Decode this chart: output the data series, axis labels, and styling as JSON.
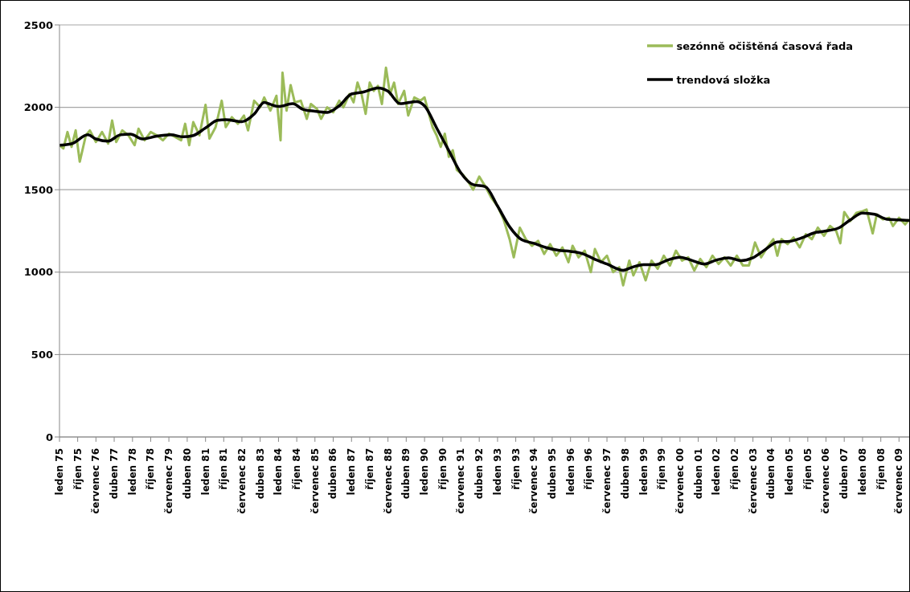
{
  "chart_data": {
    "type": "line",
    "legend": "top right",
    "grid": "y",
    "ylim": [
      0,
      2500
    ],
    "yticks": [
      0,
      500,
      1000,
      1500,
      2000,
      2500
    ],
    "xlim": [
      "1975-01",
      "2009-12"
    ],
    "xticks": [
      {
        "value": "1975-01",
        "label": "leden 75"
      },
      {
        "value": "1975-10",
        "label": "říjen 75"
      },
      {
        "value": "1976-07",
        "label": "červenec 76"
      },
      {
        "value": "1977-04",
        "label": "duben 77"
      },
      {
        "value": "1978-01",
        "label": "leden 78"
      },
      {
        "value": "1978-10",
        "label": "říjen 78"
      },
      {
        "value": "1979-07",
        "label": "červenec 79"
      },
      {
        "value": "1980-04",
        "label": "duben 80"
      },
      {
        "value": "1981-01",
        "label": "leden 81"
      },
      {
        "value": "1981-10",
        "label": "říjen 81"
      },
      {
        "value": "1982-07",
        "label": "červenec 82"
      },
      {
        "value": "1983-04",
        "label": "duben 83"
      },
      {
        "value": "1984-01",
        "label": "leden 84"
      },
      {
        "value": "1984-10",
        "label": "říjen 84"
      },
      {
        "value": "1985-07",
        "label": "červenec 85"
      },
      {
        "value": "1986-04",
        "label": "duben 86"
      },
      {
        "value": "1987-01",
        "label": "leden 87"
      },
      {
        "value": "1987-10",
        "label": "říjen 87"
      },
      {
        "value": "1988-07",
        "label": "červenec 88"
      },
      {
        "value": "1989-04",
        "label": "duben 89"
      },
      {
        "value": "1990-01",
        "label": "leden 90"
      },
      {
        "value": "1990-10",
        "label": "říjen 90"
      },
      {
        "value": "1991-07",
        "label": "červenec 91"
      },
      {
        "value": "1992-04",
        "label": "duben 92"
      },
      {
        "value": "1993-01",
        "label": "leden 93"
      },
      {
        "value": "1993-10",
        "label": "říjen 93"
      },
      {
        "value": "1994-07",
        "label": "červenec 94"
      },
      {
        "value": "1995-04",
        "label": "duben 95"
      },
      {
        "value": "1996-01",
        "label": "leden 96"
      },
      {
        "value": "1996-10",
        "label": "říjen 96"
      },
      {
        "value": "1997-07",
        "label": "červenec 97"
      },
      {
        "value": "1998-04",
        "label": "duben 98"
      },
      {
        "value": "1999-01",
        "label": "leden 99"
      },
      {
        "value": "1999-10",
        "label": "říjen 99"
      },
      {
        "value": "2000-07",
        "label": "červenec 00"
      },
      {
        "value": "2001-04",
        "label": "duben 01"
      },
      {
        "value": "2002-01",
        "label": "leden 02"
      },
      {
        "value": "2002-10",
        "label": "říjen 02"
      },
      {
        "value": "2003-07",
        "label": "červenec 03"
      },
      {
        "value": "2004-04",
        "label": "duben 04"
      },
      {
        "value": "2005-01",
        "label": "leden 05"
      },
      {
        "value": "2005-10",
        "label": "říjen 05"
      },
      {
        "value": "2006-07",
        "label": "červenec 06"
      },
      {
        "value": "2007-04",
        "label": "duben 07"
      },
      {
        "value": "2008-01",
        "label": "leden 08"
      },
      {
        "value": "2008-10",
        "label": "říjen 08"
      },
      {
        "value": "2009-07",
        "label": "červenec 09"
      }
    ],
    "series": [
      {
        "name": "sezónně očištěná časová řada",
        "color": "#9bbb59",
        "x": [
          "1975-01",
          "1975-03",
          "1975-05",
          "1975-07",
          "1975-09",
          "1975-11",
          "1976-02",
          "1976-04",
          "1976-07",
          "1976-10",
          "1977-01",
          "1977-03",
          "1977-05",
          "1977-08",
          "1977-11",
          "1978-02",
          "1978-04",
          "1978-07",
          "1978-10",
          "1979-01",
          "1979-04",
          "1979-07",
          "1979-10",
          "1980-01",
          "1980-03",
          "1980-05",
          "1980-07",
          "1980-10",
          "1981-01",
          "1981-03",
          "1981-06",
          "1981-09",
          "1981-11",
          "1982-02",
          "1982-05",
          "1982-08",
          "1982-10",
          "1983-01",
          "1983-04",
          "1983-06",
          "1983-09",
          "1983-12",
          "1984-02",
          "1984-03",
          "1984-05",
          "1984-07",
          "1984-09",
          "1984-12",
          "1985-03",
          "1985-05",
          "1985-08",
          "1985-10",
          "1986-01",
          "1986-04",
          "1986-07",
          "1986-09",
          "1986-12",
          "1987-02",
          "1987-04",
          "1987-06",
          "1987-08",
          "1987-10",
          "1987-12",
          "1988-02",
          "1988-04",
          "1988-06",
          "1988-08",
          "1988-10",
          "1988-12",
          "1989-03",
          "1989-05",
          "1989-08",
          "1989-11",
          "1990-01",
          "1990-03",
          "1990-05",
          "1990-07",
          "1990-09",
          "1990-11",
          "1991-01",
          "1991-03",
          "1991-05",
          "1991-08",
          "1991-10",
          "1992-01",
          "1992-04",
          "1992-07",
          "1992-10",
          "1993-01",
          "1993-04",
          "1993-07",
          "1993-09",
          "1993-12",
          "1994-03",
          "1994-06",
          "1994-09",
          "1994-12",
          "1995-03",
          "1995-06",
          "1995-09",
          "1995-12",
          "1996-02",
          "1996-05",
          "1996-08",
          "1996-11",
          "1997-01",
          "1997-04",
          "1997-07",
          "1997-10",
          "1998-01",
          "1998-03",
          "1998-06",
          "1998-08",
          "1998-11",
          "1999-02",
          "1999-05",
          "1999-08",
          "1999-11",
          "2000-02",
          "2000-05",
          "2000-08",
          "2000-11",
          "2001-02",
          "2001-05",
          "2001-08",
          "2001-11",
          "2002-02",
          "2002-05",
          "2002-08",
          "2002-11",
          "2003-02",
          "2003-05",
          "2003-08",
          "2003-11",
          "2004-02",
          "2004-05",
          "2004-07",
          "2004-09",
          "2004-12",
          "2005-03",
          "2005-06",
          "2005-09",
          "2005-12",
          "2006-03",
          "2006-06",
          "2006-09",
          "2006-12",
          "2007-02",
          "2007-04",
          "2007-07",
          "2007-10",
          "2008-01",
          "2008-03",
          "2008-06",
          "2008-08",
          "2008-11",
          "2009-02",
          "2009-04",
          "2009-07",
          "2009-10",
          "2009-12"
        ],
        "values": [
          1770,
          1750,
          1850,
          1760,
          1860,
          1670,
          1830,
          1860,
          1790,
          1850,
          1780,
          1920,
          1790,
          1860,
          1830,
          1770,
          1870,
          1800,
          1850,
          1830,
          1800,
          1840,
          1820,
          1800,
          1900,
          1770,
          1910,
          1830,
          2015,
          1810,
          1880,
          2040,
          1880,
          1940,
          1900,
          1950,
          1860,
          2040,
          2000,
          2060,
          1980,
          2070,
          1800,
          2210,
          1980,
          2135,
          2030,
          2040,
          1930,
          2020,
          1990,
          1930,
          2000,
          1970,
          2040,
          2000,
          2080,
          2030,
          2150,
          2080,
          1960,
          2150,
          2100,
          2130,
          2020,
          2240,
          2080,
          2150,
          2020,
          2100,
          1950,
          2060,
          2040,
          2060,
          1970,
          1880,
          1830,
          1760,
          1840,
          1700,
          1740,
          1620,
          1590,
          1560,
          1500,
          1580,
          1520,
          1450,
          1400,
          1320,
          1200,
          1090,
          1270,
          1200,
          1160,
          1190,
          1110,
          1170,
          1100,
          1150,
          1060,
          1160,
          1090,
          1130,
          1000,
          1140,
          1060,
          1100,
          1000,
          1030,
          920,
          1070,
          980,
          1060,
          950,
          1070,
          1020,
          1100,
          1040,
          1130,
          1070,
          1090,
          1010,
          1080,
          1030,
          1100,
          1050,
          1090,
          1040,
          1100,
          1040,
          1040,
          1180,
          1090,
          1150,
          1200,
          1100,
          1200,
          1170,
          1210,
          1150,
          1230,
          1200,
          1270,
          1220,
          1280,
          1250,
          1175,
          1365,
          1310,
          1360,
          1370,
          1380,
          1235,
          1350,
          1320,
          1330,
          1280,
          1330,
          1290,
          1320
        ]
      },
      {
        "name": "trendová složka",
        "color": "#000000",
        "x": [
          "1975-01",
          "1975-07",
          "1976-03",
          "1976-07",
          "1977-01",
          "1977-07",
          "1977-12",
          "1978-06",
          "1979-01",
          "1979-08",
          "1980-02",
          "1980-07",
          "1981-01",
          "1981-07",
          "1981-11",
          "1982-07",
          "1983-01",
          "1983-06",
          "1983-09",
          "1984-01",
          "1984-08",
          "1985-01",
          "1985-07",
          "1986-01",
          "1986-07",
          "1987-01",
          "1987-07",
          "1988-02",
          "1988-07",
          "1989-01",
          "1989-09",
          "1990-01",
          "1990-07",
          "1991-01",
          "1991-07",
          "1992-01",
          "1992-07",
          "1993-01",
          "1993-07",
          "1994-01",
          "1994-07",
          "1995-01",
          "1995-07",
          "1996-01",
          "1996-07",
          "1997-01",
          "1997-07",
          "1998-03",
          "1998-07",
          "1999-01",
          "1999-07",
          "2000-01",
          "2000-07",
          "2001-01",
          "2001-07",
          "2002-01",
          "2002-07",
          "2003-01",
          "2003-07",
          "2004-01",
          "2004-07",
          "2005-01",
          "2005-07",
          "2006-01",
          "2006-07",
          "2007-01",
          "2007-07",
          "2008-01",
          "2008-07",
          "2009-01",
          "2009-07",
          "2009-12"
        ],
        "values": [
          1770,
          1779,
          1833,
          1808,
          1795,
          1833,
          1837,
          1808,
          1825,
          1833,
          1821,
          1829,
          1875,
          1921,
          1925,
          1913,
          1959,
          2030,
          2018,
          2005,
          2022,
          1988,
          1976,
          1969,
          2009,
          2081,
          2093,
          2118,
          2098,
          2022,
          2035,
          2009,
          1875,
          1737,
          1602,
          1531,
          1519,
          1401,
          1275,
          1196,
          1175,
          1149,
          1133,
          1126,
          1112,
          1078,
          1049,
          1011,
          1028,
          1045,
          1045,
          1074,
          1091,
          1070,
          1049,
          1074,
          1087,
          1070,
          1087,
          1137,
          1183,
          1187,
          1208,
          1238,
          1250,
          1267,
          1317,
          1359,
          1351,
          1321,
          1317,
          1313
        ]
      }
    ]
  }
}
